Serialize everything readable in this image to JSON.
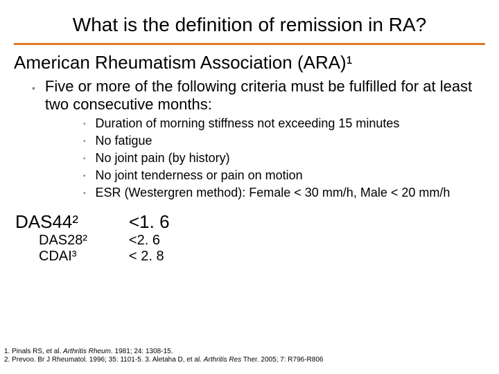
{
  "colors": {
    "accent": "#e07a2b",
    "bullet": "#7f7f7f",
    "text": "#000000",
    "background": "#ffffff"
  },
  "title": "What is the definition of remission in RA?",
  "section": "American Rheumatism Association (ARA)¹",
  "intro": "Five or more of the following criteria must be fulfilled for at least two consecutive months:",
  "criteria": [
    "Duration of morning stiffness not exceeding 15 minutes",
    "No fatigue",
    "No joint pain (by history)",
    "No joint tenderness or pain on motion",
    "ESR (Westergren method):   Female  < 30 mm/h, Male  < 20 mm/h"
  ],
  "thresholds": {
    "main": {
      "label": "DAS44²",
      "value": "<1. 6"
    },
    "sub": [
      {
        "label": "DAS28²",
        "value": "<2. 6"
      },
      {
        "label": "CDAI³",
        "value": "< 2. 8"
      }
    ]
  },
  "refs": {
    "line1_a": "1. Pinals RS, et al. ",
    "line1_ital": "Arthritis Rheum",
    "line1_b": ". 1981; 24: 1308-15.",
    "line2_a": "2. Prevoo. Br J Rheumatol. 1996; 35: 1101-5. 3. Aletaha D, et al. ",
    "line2_ital": "Arthritis Res",
    "line2_b": " Ther. 2005; 7: R796-R806"
  }
}
